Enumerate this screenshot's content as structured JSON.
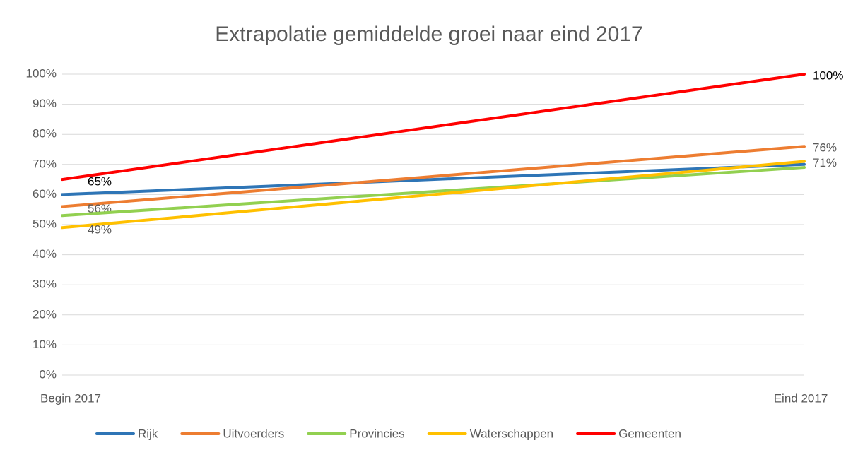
{
  "chart_data": {
    "type": "line",
    "title": "Extrapolatie gemiddelde groei naar eind 2017",
    "categories": [
      "Begin 2017",
      "Eind 2017"
    ],
    "series": [
      {
        "name": "Rijk",
        "color": "#2e75b6",
        "values": [
          60,
          70
        ]
      },
      {
        "name": "Uitvoerders",
        "color": "#ed7d31",
        "values": [
          56,
          76
        ],
        "value_labels": [
          "56%",
          "76%"
        ],
        "label_color": "#595959"
      },
      {
        "name": "Provincies",
        "color": "#92d050",
        "values": [
          53,
          69
        ]
      },
      {
        "name": "Waterschappen",
        "color": "#ffc000",
        "values": [
          49,
          71
        ],
        "value_labels": [
          "49%",
          "71%"
        ],
        "label_color": "#595959"
      },
      {
        "name": "Gemeenten",
        "color": "#ff0000",
        "values": [
          65,
          100
        ],
        "value_labels": [
          "65%",
          "100%"
        ],
        "label_color": "#000000"
      }
    ],
    "ylim": [
      0,
      100
    ],
    "yticks": [
      {
        "value": 0,
        "label": "0%"
      },
      {
        "value": 10,
        "label": "10%"
      },
      {
        "value": 20,
        "label": "20%"
      },
      {
        "value": 30,
        "label": "30%"
      },
      {
        "value": 40,
        "label": "40%"
      },
      {
        "value": 50,
        "label": "50%"
      },
      {
        "value": 60,
        "label": "60%"
      },
      {
        "value": 70,
        "label": "70%"
      },
      {
        "value": 80,
        "label": "80%"
      },
      {
        "value": 90,
        "label": "90%"
      },
      {
        "value": 100,
        "label": "100%"
      }
    ],
    "grid": true,
    "legend": "bottom"
  }
}
